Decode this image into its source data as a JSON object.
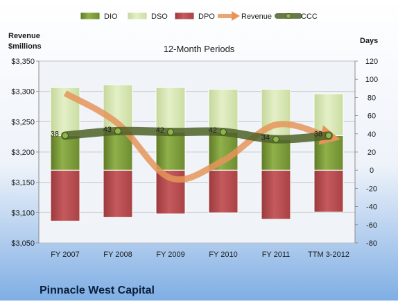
{
  "chart_data": {
    "type": "bar",
    "title": "12-Month Periods",
    "company": "Pinnacle West Capital",
    "left_axis_label_line1": "Revenue",
    "left_axis_label_line2": "$millions",
    "right_axis_label": "Days",
    "categories": [
      "FY 2007",
      "FY 2008",
      "FY 2009",
      "FY 2010",
      "FY 2011",
      "TTM 3-2012"
    ],
    "left_ylim": [
      3050,
      3350
    ],
    "left_ticks": [
      "$3,050",
      "$3,100",
      "$3,150",
      "$3,200",
      "$3,250",
      "$3,300",
      "$3,350"
    ],
    "right_ylim": [
      -80,
      120
    ],
    "right_ticks": [
      "-80",
      "-60",
      "-40",
      "-20",
      "0",
      "20",
      "40",
      "60",
      "80",
      "100",
      "120"
    ],
    "legend_position": "top",
    "legend": [
      {
        "label": "DIO",
        "key": "dio",
        "kind": "bar"
      },
      {
        "label": "DSO",
        "key": "dso",
        "kind": "bar"
      },
      {
        "label": "DPO",
        "key": "dpo",
        "kind": "bar"
      },
      {
        "label": "Revenue",
        "key": "revenue",
        "kind": "arrow"
      },
      {
        "label": "CCC",
        "key": "ccc",
        "kind": "line"
      }
    ],
    "series": [
      {
        "name": "DIO",
        "key": "dio",
        "axis": "right",
        "values": [
          38,
          43,
          42,
          42,
          34,
          38
        ]
      },
      {
        "name": "DSO",
        "key": "dso",
        "axis": "right",
        "values": [
          53,
          51,
          49,
          47,
          55,
          46
        ]
      },
      {
        "name": "DPO",
        "key": "dpo",
        "axis": "right",
        "values": [
          -56,
          -52,
          -48,
          -47,
          -54,
          -46
        ]
      },
      {
        "name": "Revenue",
        "key": "revenue",
        "axis": "left",
        "values": [
          3297,
          3247,
          3157,
          3186,
          3245,
          3225
        ]
      },
      {
        "name": "CCC",
        "key": "ccc",
        "axis": "right",
        "values": [
          38,
          43,
          42,
          42,
          34,
          38
        ]
      }
    ],
    "ccc_labels": [
      "38",
      "43",
      "42",
      "42",
      "34",
      "38"
    ],
    "colors": {
      "dio": "#7E9C3C",
      "dso": "#D5E4AE",
      "dpo": "#B5474A",
      "revenue": "#E5955A",
      "ccc": "#4F6228",
      "ccc_marker": "#8DB54A",
      "background_top": "#FFFFFF",
      "background_bottom": "#7FAEE4",
      "plot_fill": "#F0F3F7",
      "grid": "#C0C0C0"
    },
    "grid": true
  }
}
